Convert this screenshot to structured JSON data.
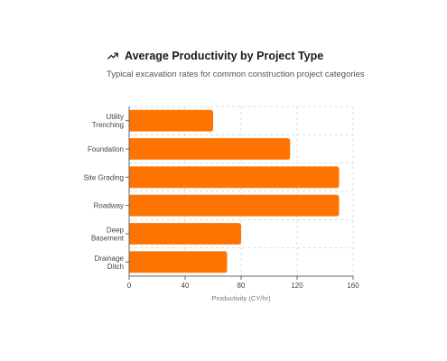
{
  "header": {
    "title": "Average Productivity by Project Type",
    "subtitle": "Typical excavation rates for common construction project categories",
    "icon": "trending-up-icon"
  },
  "chart_data": {
    "type": "bar",
    "orientation": "horizontal",
    "categories": [
      [
        "Utility",
        "Trenching"
      ],
      [
        "Foundation"
      ],
      [
        "Site Grading"
      ],
      [
        "Roadway"
      ],
      [
        "Deep",
        "Basement"
      ],
      [
        "Drainage",
        "Ditch"
      ]
    ],
    "values": [
      60,
      115,
      150,
      150,
      80,
      70
    ],
    "xlabel": "Productivity (CY/hr)",
    "ylabel": "",
    "xlim": [
      0,
      160
    ],
    "xticks": [
      0,
      40,
      80,
      120,
      160
    ],
    "grid": true,
    "bar_color": "#ff7300",
    "grid_color": "#dddddd",
    "axis_color": "#666666"
  }
}
